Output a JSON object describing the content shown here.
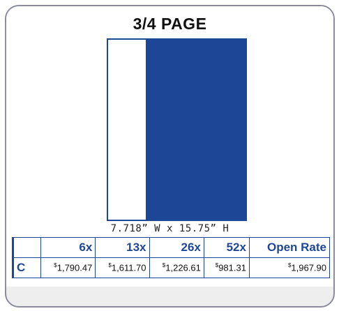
{
  "title": "3/4 PAGE",
  "dimensions": "7.718” W x 15.75” H",
  "table": {
    "headers": [
      "6x",
      "13x",
      "26x",
      "52x",
      "Open Rate"
    ],
    "rows": [
      {
        "label": "C",
        "prices": [
          {
            "symbol": "$",
            "amount": "1,790.47"
          },
          {
            "symbol": "$",
            "amount": "1,611.70"
          },
          {
            "symbol": "$",
            "amount": "1,226.61"
          },
          {
            "symbol": "$",
            "amount": "981.31"
          },
          {
            "symbol": "$",
            "amount": "1,967.90"
          }
        ]
      }
    ]
  }
}
